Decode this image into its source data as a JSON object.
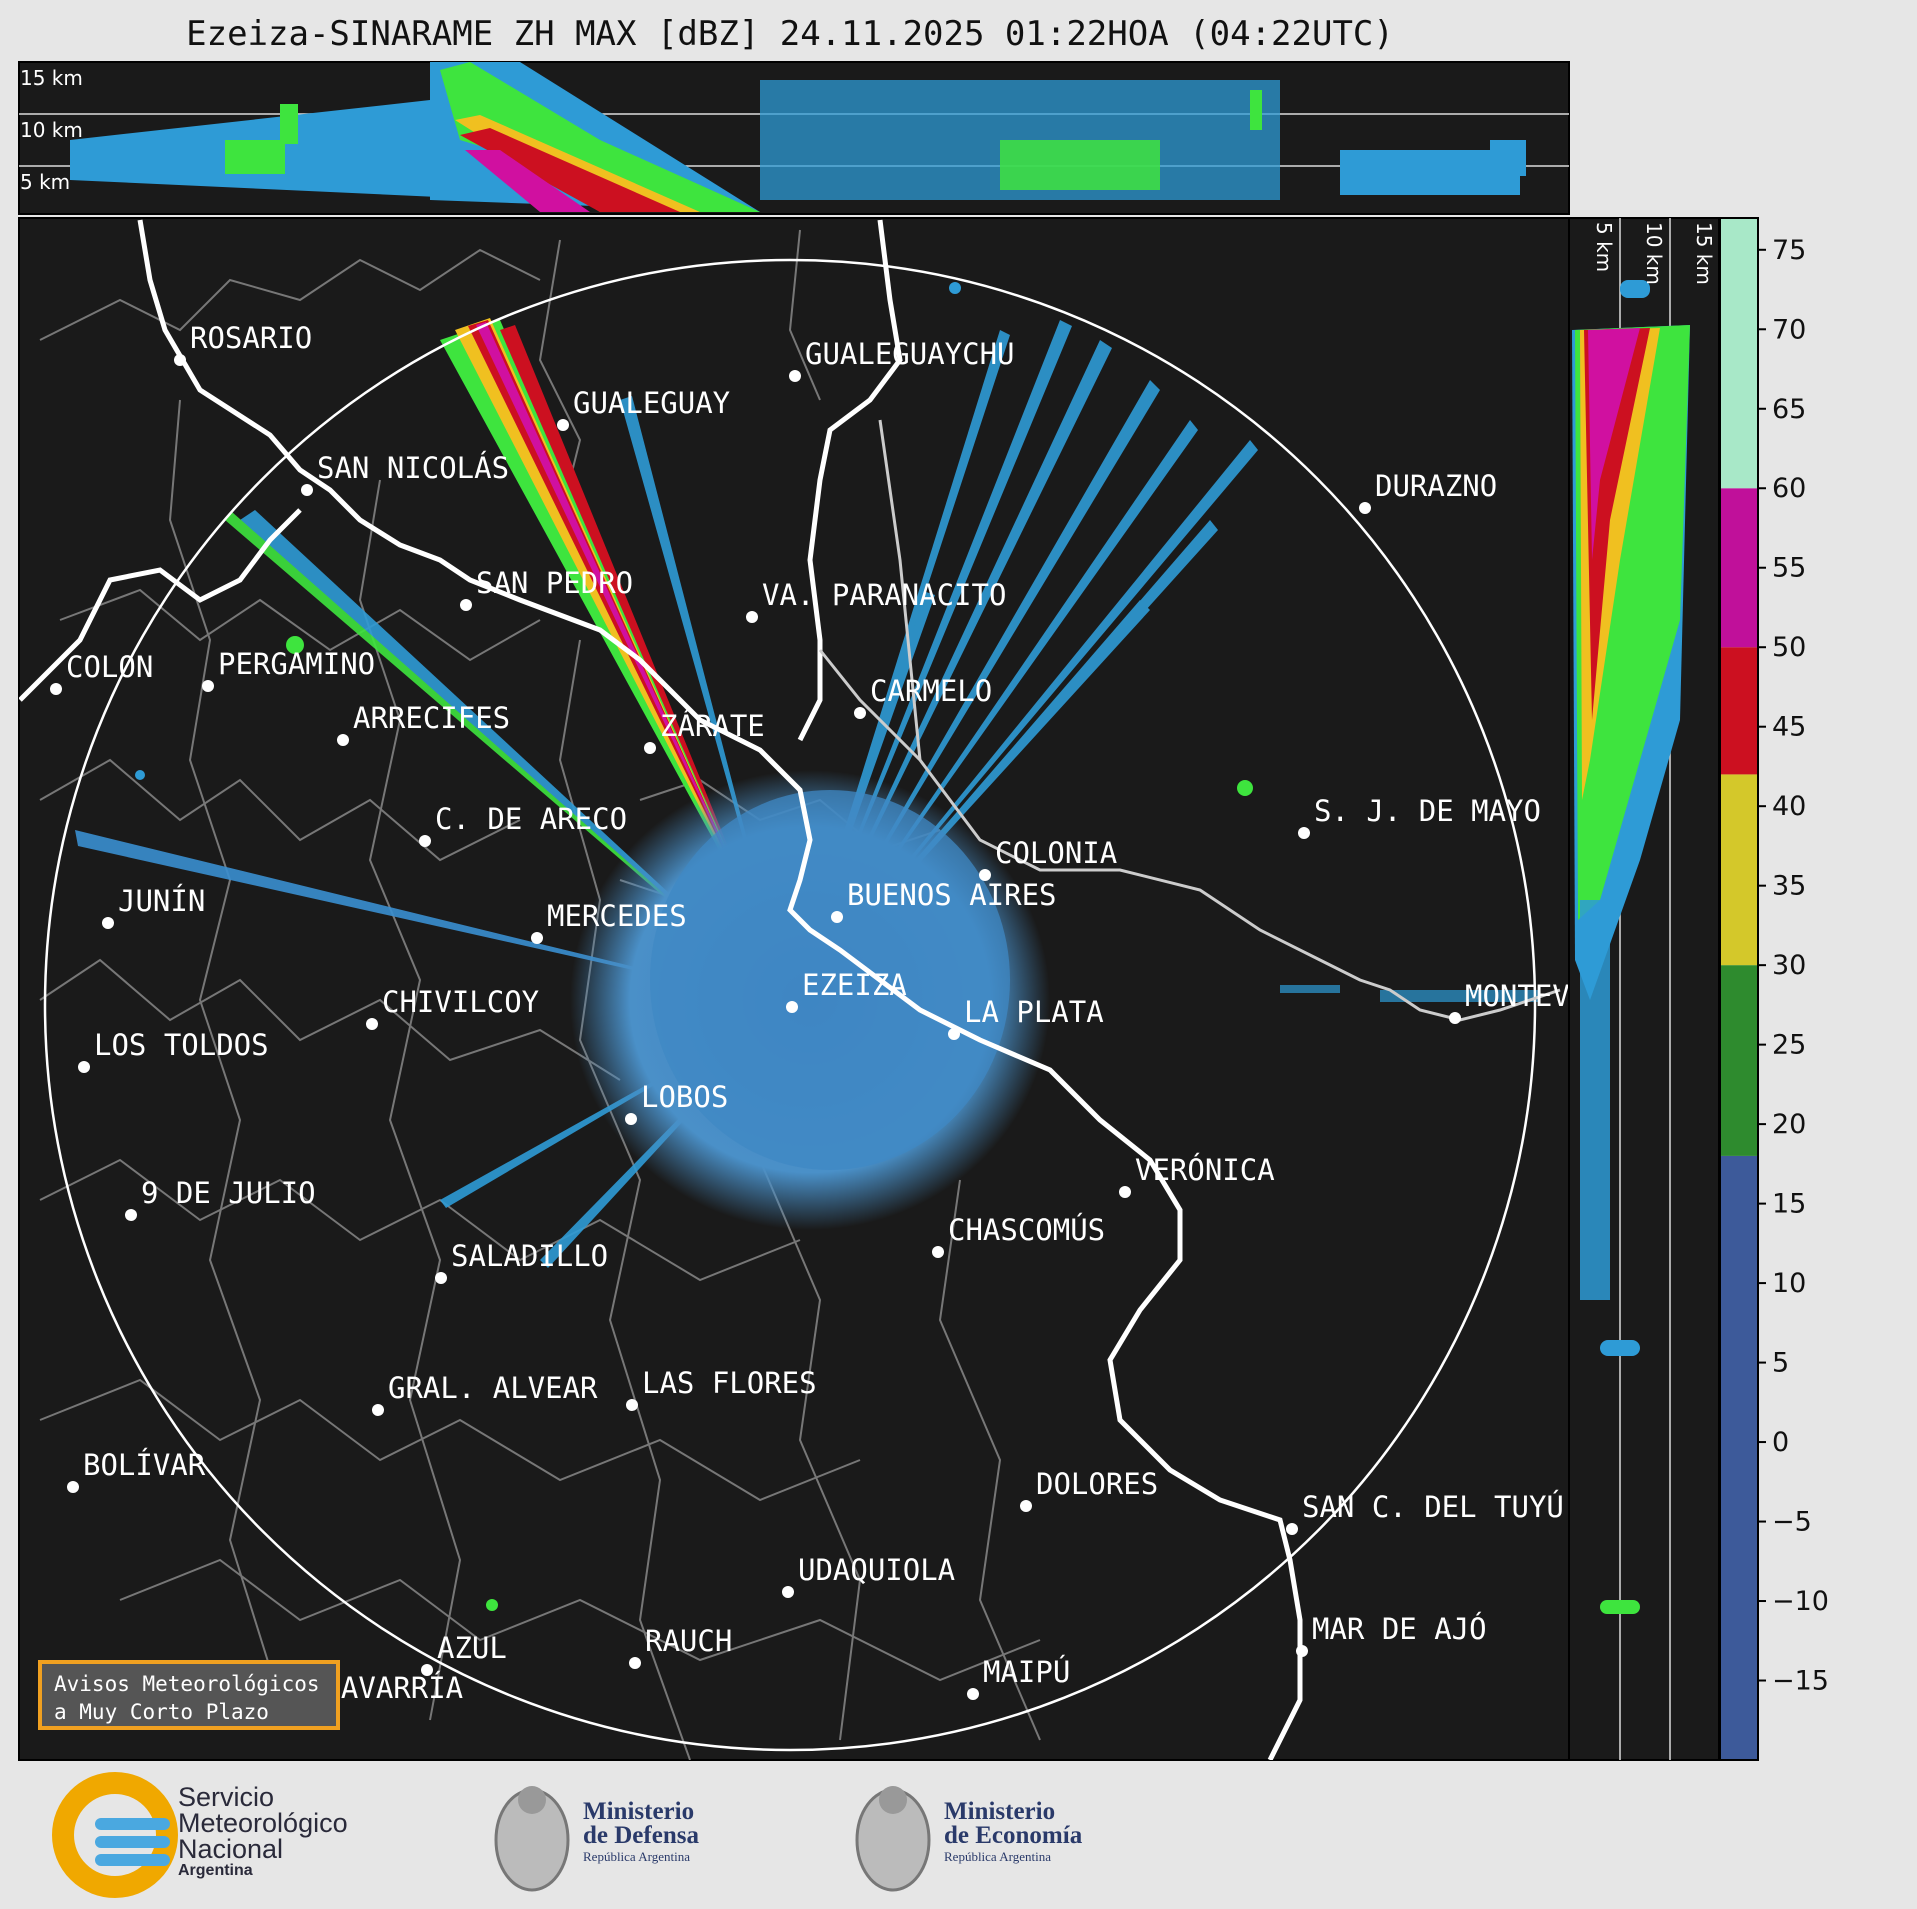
{
  "title": "Ezeiza-SINARAME ZH MAX [dBZ] 24.11.2025 01:22HOA (04:22UTC)",
  "height_labels_top": [
    "15 km",
    "10 km",
    "5 km"
  ],
  "height_labels_side": [
    "5 km",
    "10 km",
    "15 km"
  ],
  "colorbar": {
    "unit": "dBZ",
    "ticks": [
      "75",
      "70",
      "65",
      "60",
      "55",
      "50",
      "45",
      "40",
      "35",
      "30",
      "25",
      "20",
      "15",
      "10",
      "5",
      "0",
      "−5",
      "−10",
      "−15"
    ],
    "bands": [
      {
        "from": -20,
        "to": 18,
        "color": "#3d5a9a"
      },
      {
        "from": 18,
        "to": 30,
        "color": "#2e8b2e"
      },
      {
        "from": 30,
        "to": 42,
        "color": "#d4c82a"
      },
      {
        "from": 42,
        "to": 50,
        "color": "#cc1020"
      },
      {
        "from": 50,
        "to": 60,
        "color": "#c0109a"
      },
      {
        "from": 60,
        "to": 77,
        "color": "#a8e8c8"
      }
    ]
  },
  "cities": [
    {
      "name": "ROSARIO"
    },
    {
      "name": "GUALEGUAYCHU"
    },
    {
      "name": "GUALEGUAY"
    },
    {
      "name": "SAN NICOLÁS"
    },
    {
      "name": "DURAZNO"
    },
    {
      "name": "SAN PEDRO"
    },
    {
      "name": "VA. PARANACITO"
    },
    {
      "name": "COLON"
    },
    {
      "name": "PERGAMINO"
    },
    {
      "name": "CARMELO"
    },
    {
      "name": "ARRECIFES"
    },
    {
      "name": "ZÁRATE"
    },
    {
      "name": "S. J. DE MAYO"
    },
    {
      "name": "C. DE ARECO"
    },
    {
      "name": "COLONIA"
    },
    {
      "name": "JUNÍN"
    },
    {
      "name": "BUENOS AIRES"
    },
    {
      "name": "MERCEDES"
    },
    {
      "name": "MONTEVIDEO"
    },
    {
      "name": "EZEIZA"
    },
    {
      "name": "CHIVILCOY"
    },
    {
      "name": "LA PLATA"
    },
    {
      "name": "LOS TOLDOS"
    },
    {
      "name": "LOBOS"
    },
    {
      "name": "VERÓNICA"
    },
    {
      "name": "9 DE JULIO"
    },
    {
      "name": "CHASCOMÚS"
    },
    {
      "name": "SALADILLO"
    },
    {
      "name": "GRAL. ALVEAR"
    },
    {
      "name": "LAS FLORES"
    },
    {
      "name": "BOLÍVAR"
    },
    {
      "name": "DOLORES"
    },
    {
      "name": "SAN C. DEL TUYÚ"
    },
    {
      "name": "UDAQUIOLA"
    },
    {
      "name": "MAR DE AJÓ"
    },
    {
      "name": "AZUL"
    },
    {
      "name": "RAUCH"
    },
    {
      "name": "OLAVARRÍA"
    },
    {
      "name": "MAIPÚ"
    }
  ],
  "warning_box": {
    "line1": "Avisos Meteorológicos",
    "line2": "a Muy Corto Plazo"
  },
  "logos": {
    "smn": {
      "line1": "Servicio",
      "line2": "Meteorológico",
      "line3": "Nacional",
      "line4": "Argentina"
    },
    "defensa": {
      "line1": "Ministerio",
      "line2": "de Defensa",
      "line3": "República Argentina"
    },
    "economia": {
      "line1": "Ministerio",
      "line2": "de Economía",
      "line3": "República Argentina"
    }
  }
}
